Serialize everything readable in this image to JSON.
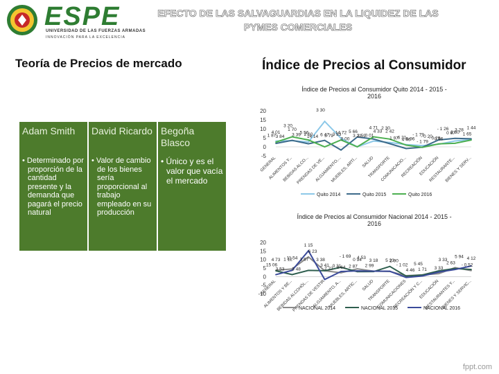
{
  "header": {
    "logo_word": "ESPE",
    "logo_sub1": "UNIVERSIDAD DE LAS FUERZAS ARMADAS",
    "logo_sub2": "INNOVACIÓN PARA LA EXCELENCIA",
    "title_line1": "EFECTO DE LAS SALVAGUARDIAS EN LA LIQUIDEZ DE LAS",
    "title_line2": "PYMES COMERCIALES"
  },
  "left_heading": "Teoría de Precios de mercado",
  "right_heading": "Índice de Precios al Consumidor",
  "theory": {
    "columns": [
      {
        "head": "Adam Smith",
        "body": [
          "Determinado por proporción de la cantidad presente y la demanda que pagará el precio natural"
        ]
      },
      {
        "head": "David Ricardo",
        "body": [
          "Valor de cambio de los bienes sería proporcional al trabajo empleado en su producción"
        ]
      },
      {
        "head": "Begoña Blasco",
        "body": [
          "Único y es el valor que vacía el mercado"
        ]
      }
    ]
  },
  "colors": {
    "green_box": "#4d7b2c",
    "quito2014": "#8cc8e8",
    "quito2015": "#3c6a8a",
    "quito2016": "#4caf50",
    "nac2014": "#8a8a8a",
    "nac2015": "#2e5e4e",
    "nac2016": "#3a4a9a"
  },
  "chart_data": [
    {
      "type": "line",
      "title": "Índice de Precios al Consumidor Quito 2014 - 2015 - 2016",
      "categories": [
        "GENERAL",
        "ALIMENTOS Y...",
        "BEBIDAS ALCO...",
        "PRENDAS DE VE...",
        "ALOJAMIENTO,...",
        "MUEBLES, ARTÍ...",
        "SALUD",
        "TRANSPORTE",
        "COMUNICACIO...",
        "RECREACIÓN",
        "EDUCACIÓN",
        "RESTAURANTE...",
        "BIENES Y SERV..."
      ],
      "yticks": [
        "20",
        "15",
        "10",
        "5",
        "0",
        "-5"
      ],
      "ylim": [
        -5,
        20
      ],
      "series": [
        {
          "name": "Quito 2014",
          "values": [
            3.2,
            3.39,
            2.69,
            14.14,
            4.72,
            0.01,
            3.21,
            2.42,
            1.26,
            0.67,
            1.44,
            3.28,
            4.01
          ]
        },
        {
          "name": "Quito 2015",
          "values": [
            1.87,
            3.59,
            1.7,
            3.59,
            -1.79,
            5.47,
            4.33,
            1.73,
            -0.96,
            -0.2,
            3.84,
            4.71,
            4.46
          ]
        },
        {
          "name": "Quito 2016",
          "values": [
            2.6,
            5.56,
            3.79,
            0.0,
            3.8,
            0.0,
            5.56,
            4.3,
            0.96,
            -0.29,
            1.65,
            1.97,
            3.8
          ]
        }
      ],
      "labels": [
        "1 87",
        "1 70",
        "14 14",
        "3 30",
        "14 72",
        "3 59",
        "0 01",
        "2 42",
        "5 96",
        "- 1 79",
        "0 96",
        "3 28",
        "1 65",
        "4 01",
        "3 39",
        "5 56",
        "6 47",
        "0 00",
        "5 66",
        "4 71",
        "1 97",
        "6 31",
        "- 1 79",
        "- 1 26",
        "0 67",
        "1 44",
        "3 84",
        "3 20",
        "2 60",
        "3 79",
        "3 33",
        "3 21",
        "4 33",
        "2 30",
        "4 46",
        "- 0 20",
        "- 0 29",
        "3 80"
      ]
    },
    {
      "type": "line",
      "title": "Índice de Precios al Consumidor Nacional 2014 - 2015 - 2016",
      "categories": [
        "GENERAL",
        "ALIMENTOS Y BE...",
        "BEBIDAS ALCOHÓL...",
        "PRENDAS DE VESTIR",
        "ALOJAMIENTO, A...",
        "MUEBLES, ARTÍC...",
        "SALUD",
        "TRANSPORTE",
        "COMUNICACIONES",
        "RECREACIÓN Y C...",
        "EDUCACIÓN",
        "RESTAURANTES Y...",
        "BIENES Y SERVIC..."
      ],
      "yticks": [
        "20",
        "15",
        "10",
        "5",
        "0",
        "-5",
        "-10"
      ],
      "ylim": [
        -10,
        20
      ],
      "series": [
        {
          "name": "NACIONAL 2014",
          "values": [
            3.67,
            4.46,
            11.54,
            3.41,
            2.21,
            4.53,
            3.18,
            2.99,
            0.52,
            1.02,
            1.71,
            5.23,
            3.48
          ]
        },
        {
          "name": "NACIONAL 2015",
          "values": [
            3.38,
            1.15,
            3.64,
            3.41,
            5.45,
            2.87,
            2.9,
            5.94,
            0.31,
            0.94,
            3.33,
            4.73,
            4.12
          ]
        },
        {
          "name": "NACIONAL 2016",
          "values": [
            1.12,
            3.64,
            15.06,
            -1.69,
            2.97,
            3.33,
            3.18,
            3.11,
            -0.52,
            0.31,
            2.63,
            4.12,
            6.23
          ]
        }
      ],
      "labels": [
        "15 06",
        "11 54",
        "6 23",
        "3 38",
        "3 64",
        "4 53",
        "2 99",
        "5 23",
        "4 46",
        "5 45",
        "3 33",
        "5 94",
        "- 0 52",
        "4 73",
        "3 48",
        "3 67",
        "3 41",
        "- 1 69",
        "2 87",
        "3 18",
        "2 90",
        "- 1 02",
        "1 71",
        "3 33",
        "2 63",
        "4 12",
        "3 53",
        "1 12",
        "1 15",
        "2 21",
        "0 31",
        "0 94"
      ]
    }
  ],
  "credit": "fppt.com"
}
